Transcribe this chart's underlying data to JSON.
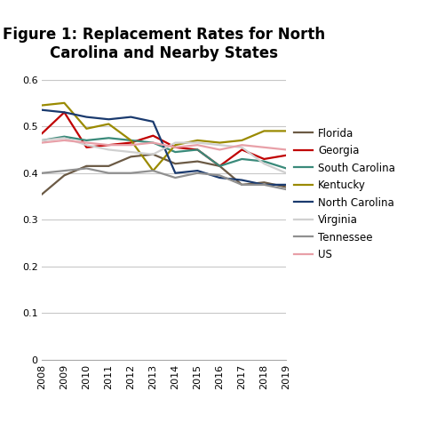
{
  "title": "Figure 1: Replacement Rates for North\nCarolina and Nearby States",
  "years": [
    2008,
    2009,
    2010,
    2011,
    2012,
    2013,
    2014,
    2015,
    2016,
    2017,
    2018,
    2019
  ],
  "series": {
    "Florida": [
      0.355,
      0.395,
      0.415,
      0.415,
      0.435,
      0.44,
      0.42,
      0.425,
      0.415,
      0.375,
      0.38,
      0.37
    ],
    "Georgia": [
      0.485,
      0.53,
      0.455,
      0.46,
      0.465,
      0.48,
      0.455,
      0.45,
      0.415,
      0.45,
      0.43,
      0.438
    ],
    "South Carolina": [
      0.47,
      0.478,
      0.47,
      0.475,
      0.47,
      0.465,
      0.445,
      0.45,
      0.415,
      0.43,
      0.425,
      0.41
    ],
    "Kentucky": [
      0.545,
      0.55,
      0.495,
      0.505,
      0.47,
      0.405,
      0.46,
      0.47,
      0.465,
      0.47,
      0.49,
      0.49
    ],
    "North Carolina": [
      0.535,
      0.53,
      0.52,
      0.515,
      0.52,
      0.51,
      0.4,
      0.405,
      0.39,
      0.385,
      0.375,
      0.375
    ],
    "Virginia": [
      0.47,
      0.475,
      0.46,
      0.45,
      0.445,
      0.44,
      0.465,
      0.465,
      0.46,
      0.455,
      0.42,
      0.4
    ],
    "Tennessee": [
      0.4,
      0.405,
      0.41,
      0.4,
      0.4,
      0.405,
      0.39,
      0.4,
      0.395,
      0.375,
      0.375,
      0.365
    ],
    "US": [
      0.465,
      0.47,
      0.465,
      0.46,
      0.46,
      0.465,
      0.455,
      0.46,
      0.45,
      0.46,
      0.455,
      0.45
    ]
  },
  "colors": {
    "Florida": "#6b5a45",
    "Georgia": "#c00000",
    "South Carolina": "#3a8a7a",
    "Kentucky": "#9a8a00",
    "North Carolina": "#1a3a6e",
    "Virginia": "#d0d0d0",
    "Tennessee": "#909090",
    "US": "#e8a0a8"
  },
  "ylim": [
    0,
    0.62
  ],
  "yticks": [
    0,
    0.1,
    0.2,
    0.3,
    0.4,
    0.5,
    0.6
  ],
  "background_color": "#ffffff",
  "title_fontsize": 12,
  "legend_fontsize": 8.5,
  "tick_fontsize": 8
}
